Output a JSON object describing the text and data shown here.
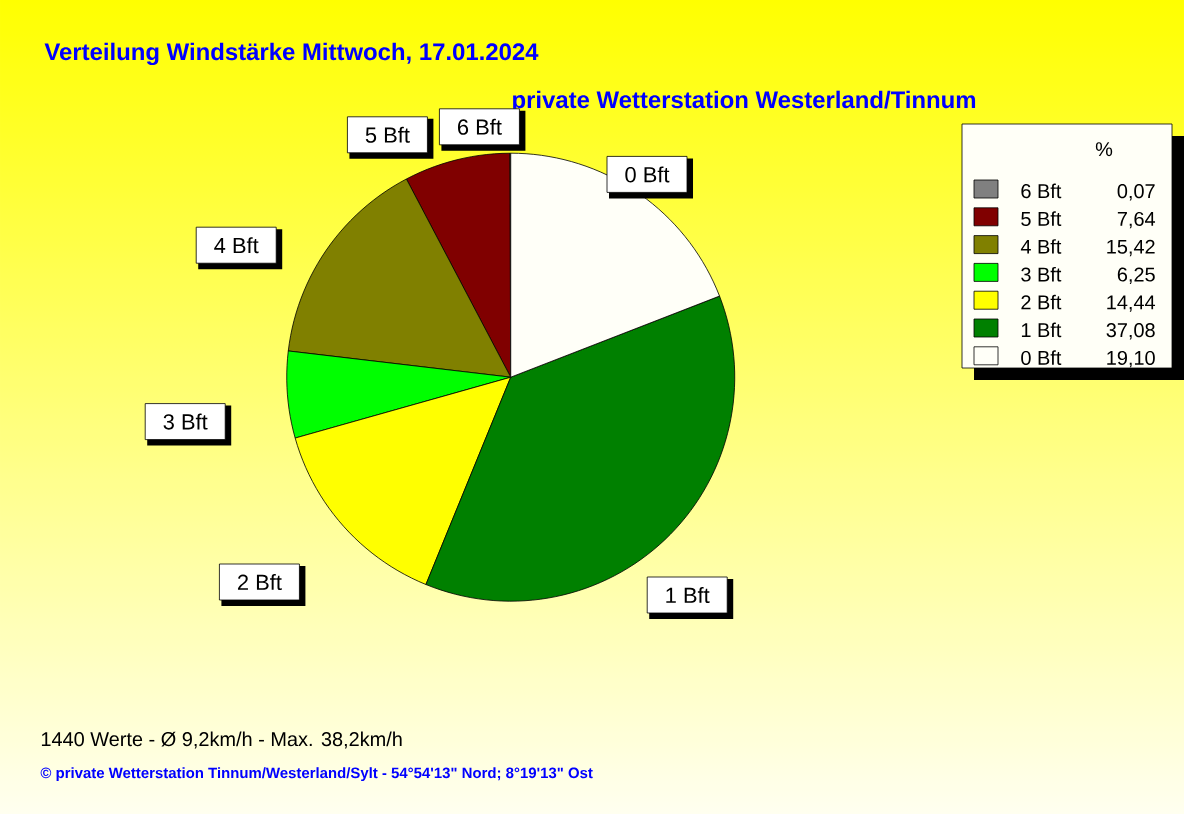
{
  "chart_data": {
    "type": "pie",
    "title": "Verteilung Windstärke  Mittwoch, 17.01.2024",
    "subtitle": "private Wetterstation Westerland/Tinnum",
    "categories": [
      "6 Bft",
      "5 Bft",
      "4 Bft",
      "3 Bft",
      "2 Bft",
      "1 Bft",
      "0 Bft"
    ],
    "values": [
      0.07,
      7.64,
      15.42,
      6.25,
      14.44,
      37.08,
      19.1
    ],
    "value_labels": [
      "0,07",
      "7,64",
      "15,42",
      "6,25",
      "14,44",
      "37,08",
      "19,10"
    ],
    "colors": [
      "#808080",
      "#800000",
      "#808000",
      "#00ff00",
      "#ffff00",
      "#008000",
      "#fffff8"
    ],
    "legend": "top right",
    "legend_title": "%",
    "annotations": [
      "1440 Werte   -   Ø 9,2km/h  -  Max. 38,2km/h",
      "© private Wetterstation Tinnum/Westerland/Sylt   -   54°54'13\" Nord; 8°19'13\" Ost"
    ]
  }
}
